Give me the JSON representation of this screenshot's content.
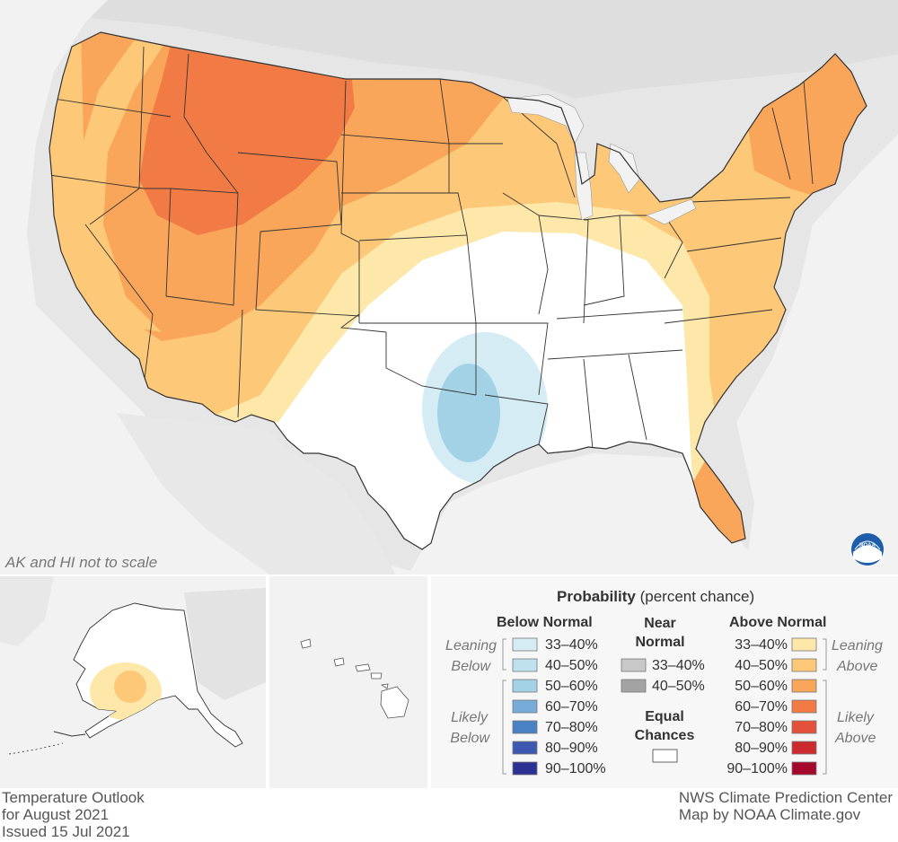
{
  "map": {
    "scale_note": "AK and HI not to scale",
    "logo": "NOAA"
  },
  "legend": {
    "title_bold": "Probability",
    "title_rest": " (percent chance)",
    "below_normal": {
      "header": "Below Normal",
      "leaning_label": [
        "Leaning",
        "Below"
      ],
      "likely_label": [
        "Likely",
        "Below"
      ],
      "items": [
        {
          "label": "33–40%",
          "color": "#d5ecf5"
        },
        {
          "label": "40–50%",
          "color": "#bfe0ee"
        },
        {
          "label": "50–60%",
          "color": "#a3d2e6"
        },
        {
          "label": "60–70%",
          "color": "#77acd8"
        },
        {
          "label": "70–80%",
          "color": "#4a80c4"
        },
        {
          "label": "80–90%",
          "color": "#3c58b0"
        },
        {
          "label": "90–100%",
          "color": "#2b3192"
        }
      ]
    },
    "near_normal": {
      "header": [
        "Near",
        "Normal"
      ],
      "items": [
        {
          "label": "33–40%",
          "color": "#c8c8c8"
        },
        {
          "label": "40–50%",
          "color": "#a3a3a3"
        }
      ]
    },
    "equal_chances": {
      "label": [
        "Equal",
        "Chances"
      ],
      "color": "#ffffff"
    },
    "above_normal": {
      "header": "Above Normal",
      "leaning_label": [
        "Leaning",
        "Above"
      ],
      "likely_label": [
        "Likely",
        "Above"
      ],
      "items": [
        {
          "label": "33–40%",
          "color": "#fde7a9"
        },
        {
          "label": "40–50%",
          "color": "#fdc877"
        },
        {
          "label": "50–60%",
          "color": "#f9a55a"
        },
        {
          "label": "60–70%",
          "color": "#f27b45"
        },
        {
          "label": "70–80%",
          "color": "#e4513b"
        },
        {
          "label": "80–90%",
          "color": "#cd2a30"
        },
        {
          "label": "90–100%",
          "color": "#a5082a"
        }
      ]
    }
  },
  "footer": {
    "left": [
      "Temperature Outlook",
      "for August 2021",
      "Issued 15 Jul 2021"
    ],
    "right": [
      "NWS Climate Prediction Center",
      "Map by NOAA Climate.gov"
    ]
  },
  "colors": {
    "background_land": "#e6e6e6",
    "water": "#f2f2f2",
    "equal_chances": "#ffffff"
  }
}
